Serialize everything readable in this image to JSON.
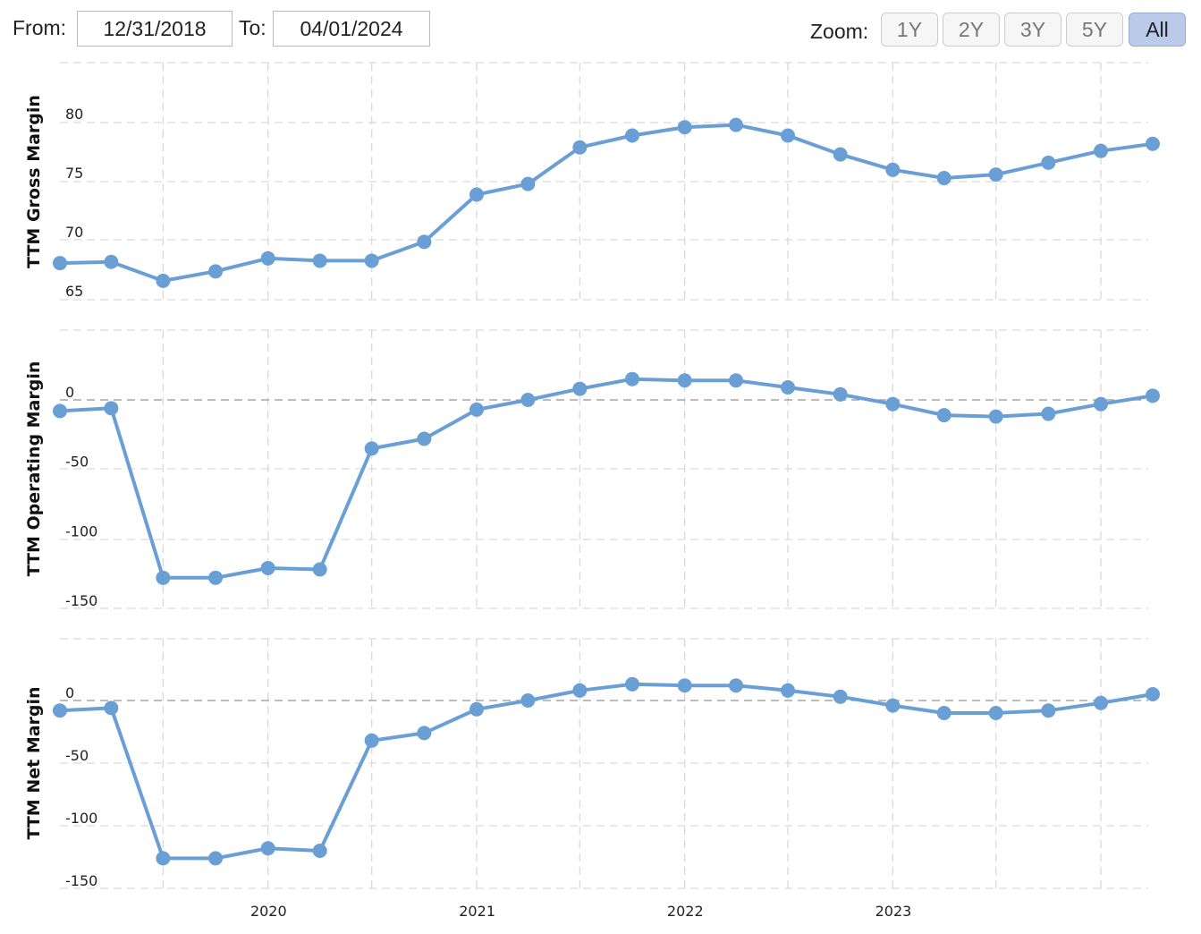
{
  "toolbar": {
    "from_label": "From:",
    "from_value": "12/31/2018",
    "to_label": "To:",
    "to_value": "04/01/2024",
    "zoom_label": "Zoom:",
    "zoom_buttons": [
      "1Y",
      "2Y",
      "3Y",
      "5Y",
      "All"
    ],
    "zoom_active": "All"
  },
  "colors": {
    "series": "#6a9fd6",
    "grid": "#d9d9d9",
    "zero_line": "#999999"
  },
  "chart_data": {
    "type": "line",
    "x": [
      "2018-12-31",
      "2019-03-31",
      "2019-06-30",
      "2019-09-30",
      "2019-12-31",
      "2020-03-31",
      "2020-06-30",
      "2020-09-30",
      "2020-12-31",
      "2021-03-31",
      "2021-06-30",
      "2021-09-30",
      "2021-12-31",
      "2022-03-31",
      "2022-06-30",
      "2022-09-30",
      "2022-12-31",
      "2023-03-31",
      "2023-06-30",
      "2023-09-30",
      "2023-12-31",
      "2024-03-31"
    ],
    "x_tick_labels": [
      "2020",
      "2021",
      "2022",
      "2023"
    ],
    "panels": [
      {
        "ylabel": "TTM Gross Margin",
        "ylim": [
          64.8,
          85
        ],
        "yticks": [
          65,
          70,
          75,
          80
        ],
        "values": [
          68.1,
          68.2,
          66.6,
          67.4,
          68.5,
          68.3,
          68.3,
          69.9,
          73.9,
          74.8,
          77.9,
          78.9,
          79.6,
          79.8,
          78.9,
          77.3,
          76.0,
          75.3,
          75.6,
          76.6,
          77.6,
          78.2
        ]
      },
      {
        "ylabel": "TTM Operating Margin",
        "ylim": [
          -150,
          50
        ],
        "yticks": [
          0,
          -50,
          -100,
          -150
        ],
        "values": [
          -8,
          -6,
          -128,
          -128,
          -121,
          -122,
          -35,
          -28,
          -7,
          0,
          8,
          15,
          14,
          14,
          9,
          4,
          -3,
          -11,
          -12,
          -10,
          -3,
          3
        ]
      },
      {
        "ylabel": "TTM Net Margin",
        "ylim": [
          -150,
          50
        ],
        "yticks": [
          0,
          -50,
          -100,
          -150
        ],
        "values": [
          -8,
          -6,
          -126,
          -126,
          -118,
          -120,
          -32,
          -26,
          -7,
          0,
          8,
          13,
          12,
          12,
          8,
          3,
          -4,
          -10,
          -10,
          -8,
          -2,
          5
        ]
      }
    ]
  }
}
